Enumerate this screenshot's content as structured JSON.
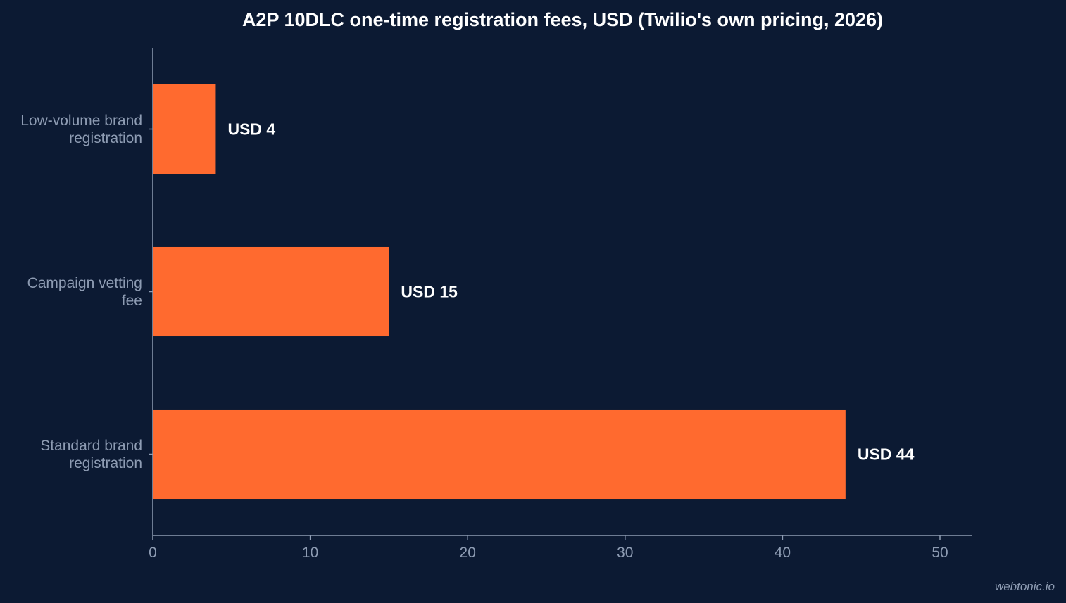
{
  "chart_data": {
    "type": "bar",
    "orientation": "horizontal",
    "title": "A2P 10DLC one-time registration fees, USD (Twilio's own pricing, 2026)",
    "xlabel": "",
    "ylabel": "",
    "categories": [
      [
        "Low-volume brand",
        "registration"
      ],
      [
        "Campaign vetting",
        "fee"
      ],
      [
        "Standard brand",
        "registration"
      ]
    ],
    "values": [
      4,
      15,
      44
    ],
    "data_labels": [
      "USD 4",
      "USD 15",
      "USD 44"
    ],
    "xlim": [
      0,
      52
    ],
    "xticks": [
      0,
      10,
      20,
      30,
      40,
      50
    ],
    "grid": false,
    "colors": {
      "background": "#0c1a33",
      "bar": "#ff6a2f",
      "axis": "#8e9cb3",
      "title": "#ffffff",
      "label": "#8e9cb3",
      "data_label": "#ffffff"
    }
  },
  "watermark": "webtonic.io"
}
